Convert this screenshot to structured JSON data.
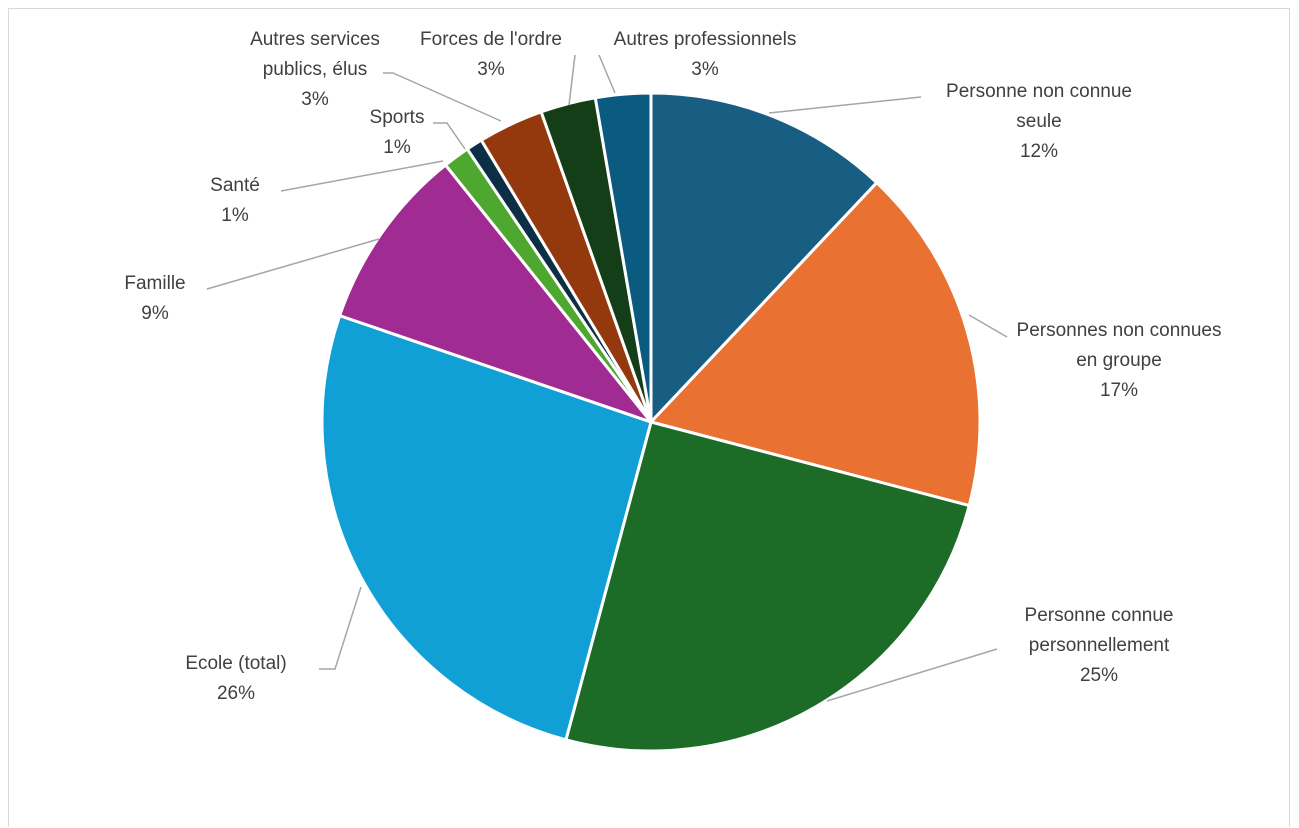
{
  "chart_data": {
    "type": "pie",
    "title": "",
    "legend": "none",
    "slices": [
      {
        "lines": [
          "Personne non connue",
          "seule"
        ],
        "pct_label": "12%",
        "value": 12,
        "color": "#185E82"
      },
      {
        "lines": [
          "Personnes non connues",
          "en groupe"
        ],
        "pct_label": "17%",
        "value": 17,
        "color": "#E97132"
      },
      {
        "lines": [
          "Personne connue",
          "personnellement"
        ],
        "pct_label": "25%",
        "value": 25,
        "color": "#1C6B27"
      },
      {
        "lines": [
          "Ecole (total)"
        ],
        "pct_label": "26%",
        "value": 26,
        "color": "#10A0D6"
      },
      {
        "lines": [
          "Famille"
        ],
        "pct_label": "9%",
        "value": 9,
        "color": "#A02B93"
      },
      {
        "lines": [
          "Santé"
        ],
        "pct_label": "1%",
        "value": 1.3,
        "color": "#4EA72E"
      },
      {
        "lines": [
          "Sports"
        ],
        "pct_label": "1%",
        "value": 0.8,
        "color": "#0D2F45"
      },
      {
        "lines": [
          "Autres services",
          "publics, élus"
        ],
        "pct_label": "3%",
        "value": 3.2,
        "color": "#94390E"
      },
      {
        "lines": [
          "Forces de l'ordre"
        ],
        "pct_label": "3%",
        "value": 2.7,
        "color": "#133E17"
      },
      {
        "lines": [
          "Autres professionnels"
        ],
        "pct_label": "3%",
        "value": 2.7,
        "color": "#0B5A80"
      }
    ]
  }
}
